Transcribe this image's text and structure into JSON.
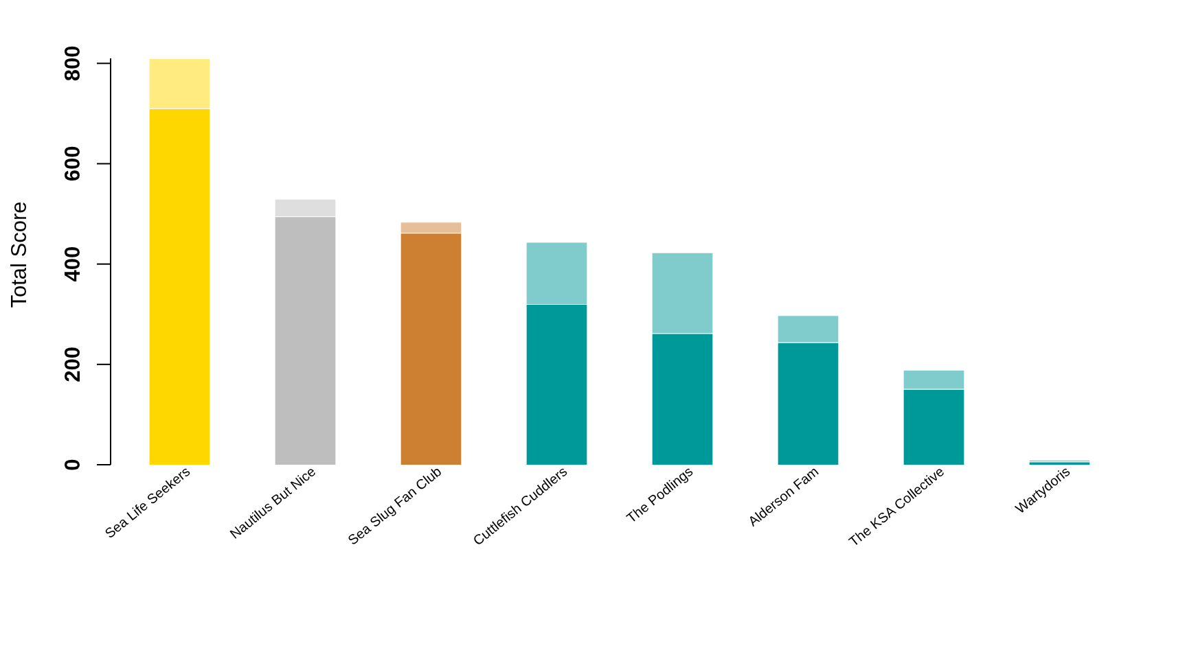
{
  "chart_data": {
    "type": "bar",
    "ylabel": "Total Score",
    "categories": [
      "Sea Life Seekers",
      "Nautilus But Nice",
      "Sea Slug Fan Club",
      "Cuttlefish Cuddlers",
      "The Podlings",
      "Alderson Fam",
      "The KSA Collective",
      "Wartydoris"
    ],
    "series": [
      {
        "colors": [
          "#ffd700",
          "#bebebe",
          "#cd7f32",
          "#009999",
          "#009999",
          "#009999",
          "#009999",
          "#009999"
        ],
        "values": [
          710,
          495,
          462,
          320,
          262,
          244,
          151,
          6
        ]
      },
      {
        "colors": [
          "#ffeb80",
          "#dedede",
          "#e6bf99",
          "#80cccc",
          "#80cccc",
          "#80cccc",
          "#80cccc",
          "#80cccc"
        ],
        "values": [
          100,
          35,
          22,
          124,
          161,
          54,
          38,
          4
        ]
      }
    ],
    "stacked": true,
    "ylim": [
      0,
      810
    ],
    "yticks": [
      0,
      200,
      400,
      600,
      800
    ]
  }
}
